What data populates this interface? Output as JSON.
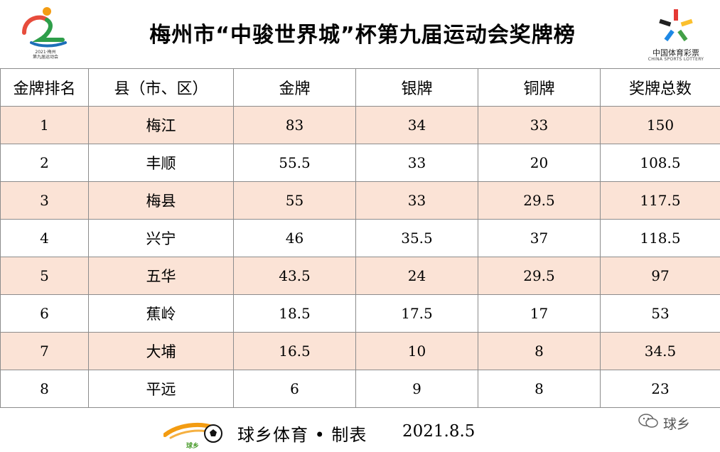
{
  "header": {
    "title": "梅州市“中骏世界城”杯第九届运动会奖牌榜",
    "left_logo_caption": "2021·梅州\n第九届运动会",
    "right_logo_cn": "中国体育彩票",
    "right_logo_en": "CHINA SPORTS LOTTERY"
  },
  "table": {
    "headers": [
      "金牌排名",
      "县（市、区）",
      "金牌",
      "银牌",
      "铜牌",
      "奖牌总数"
    ],
    "rows": [
      {
        "rank": "1",
        "county": "梅江",
        "gold": "83",
        "silver": "34",
        "bronze": "33",
        "total": "150"
      },
      {
        "rank": "2",
        "county": "丰顺",
        "gold": "55.5",
        "silver": "33",
        "bronze": "20",
        "total": "108.5"
      },
      {
        "rank": "3",
        "county": "梅县",
        "gold": "55",
        "silver": "33",
        "bronze": "29.5",
        "total": "117.5"
      },
      {
        "rank": "4",
        "county": "兴宁",
        "gold": "46",
        "silver": "35.5",
        "bronze": "37",
        "total": "118.5"
      },
      {
        "rank": "5",
        "county": "五华",
        "gold": "43.5",
        "silver": "24",
        "bronze": "29.5",
        "total": "97"
      },
      {
        "rank": "6",
        "county": "蕉岭",
        "gold": "18.5",
        "silver": "17.5",
        "bronze": "17",
        "total": "53"
      },
      {
        "rank": "7",
        "county": "大埔",
        "gold": "16.5",
        "silver": "10",
        "bronze": "8",
        "total": "34.5"
      },
      {
        "rank": "8",
        "county": "平远",
        "gold": "6",
        "silver": "9",
        "bronze": "8",
        "total": "23"
      }
    ]
  },
  "footer": {
    "text": "球乡体育 • 制表",
    "date": "2021.8.5",
    "logo_text": "球乡",
    "watermark": "球乡"
  },
  "colors": {
    "row_highlight": "#fbe3d6",
    "border": "#8c8c8c"
  }
}
